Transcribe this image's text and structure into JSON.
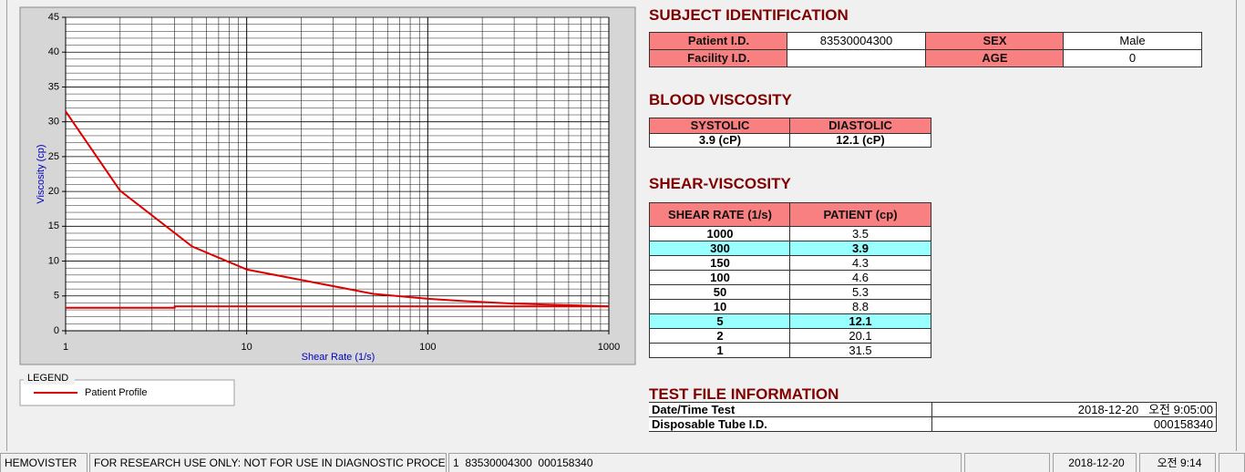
{
  "chart_data": {
    "type": "line",
    "x_label": "Shear Rate (1/s)",
    "y_label": "Viscosity (cp)",
    "xscale": "log",
    "xlim": [
      1,
      1000
    ],
    "ylim": [
      0,
      45
    ],
    "xticks": [
      1,
      10,
      100,
      1000
    ],
    "yticks": [
      0,
      5,
      10,
      15,
      20,
      25,
      30,
      35,
      40,
      45
    ],
    "x_minor_ticks": [
      2,
      3,
      4,
      5,
      6,
      7,
      8,
      9,
      20,
      30,
      40,
      50,
      60,
      70,
      80,
      90,
      200,
      300,
      400,
      500,
      600,
      700,
      800,
      900
    ],
    "y_minor_ticks": [
      1,
      2,
      3,
      4,
      6,
      7,
      8,
      9,
      11,
      12,
      13,
      14,
      16,
      17,
      18,
      19,
      21,
      22,
      23,
      24,
      26,
      27,
      28,
      29,
      31,
      32,
      33,
      34,
      36,
      37,
      38,
      39,
      41,
      42,
      43,
      44
    ],
    "grid": true,
    "legend_title": "LEGEND",
    "series": [
      {
        "name": "Patient Profile",
        "color": "#dd0000",
        "x": [
          1,
          2,
          5,
          10,
          50,
          100,
          150,
          300,
          1000
        ],
        "values": [
          31.5,
          20.1,
          12.1,
          8.8,
          5.3,
          4.6,
          4.3,
          3.9,
          3.5
        ]
      },
      {
        "color": "#dd0000",
        "x": [
          1,
          4,
          4,
          1000
        ],
        "values": [
          3.3,
          3.3,
          3.5,
          3.5
        ]
      }
    ]
  },
  "subject": {
    "title": "SUBJECT IDENTIFICATION",
    "fields": [
      {
        "label": "Patient I.D.",
        "value": "83530004300"
      },
      {
        "label": "SEX",
        "value": "Male"
      },
      {
        "label": "Facility I.D."
      },
      {
        "label": "AGE",
        "value": "0"
      }
    ]
  },
  "blood_viscosity": {
    "title": "BLOOD VISCOSITY",
    "headers": [
      "SYSTOLIC",
      "DIASTOLIC"
    ],
    "values": [
      "3.9 (cP)",
      "12.1 (cP)"
    ]
  },
  "shear_viscosity": {
    "title": "SHEAR-VISCOSITY",
    "headers": [
      "SHEAR RATE (1/s)",
      "PATIENT (cp)"
    ],
    "rows": [
      [
        1000,
        3.5
      ],
      [
        300,
        3.9
      ],
      [
        150,
        4.3
      ],
      [
        100,
        4.6
      ],
      [
        50,
        5.3
      ],
      [
        10,
        8.8
      ],
      [
        5,
        12.1
      ],
      [
        2,
        20.1
      ],
      [
        1,
        31.5
      ]
    ],
    "highlight_rows": [
      1,
      6
    ]
  },
  "test_file": {
    "title": "TEST FILE INFORMATION",
    "rows": [
      [
        "Date/Time Test",
        "2018-12-20   오전 9:05:00"
      ],
      [
        "Disposable Tube I.D.",
        "000158340"
      ]
    ]
  },
  "status_bar": [
    "HEMOVISTER",
    "FOR RESEARCH USE ONLY: NOT FOR USE IN DIAGNOSTIC PROCEDURES",
    "1  83530004300  000158340",
    "2018-12-20",
    "오전 9:14"
  ]
}
